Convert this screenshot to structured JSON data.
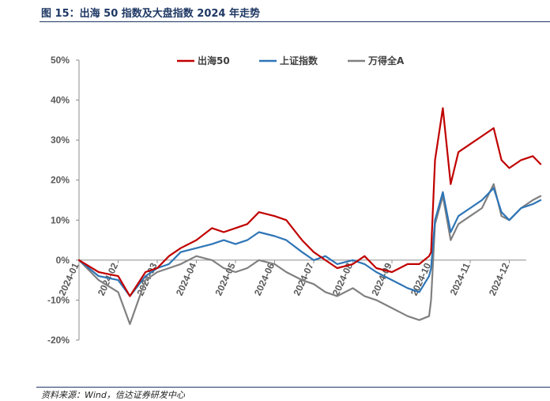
{
  "figure": {
    "title": "图 15：出海 50 指数及大盘指数 2024 年走势",
    "source": "资料来源：Wind，信达证券研发中心"
  },
  "chart_data": {
    "type": "line",
    "title": "图 15：出海 50 指数及大盘指数 2024 年走势",
    "xlabel": "",
    "ylabel": "",
    "ylim": [
      -20,
      50
    ],
    "y_ticks": [
      "50%",
      "40%",
      "30%",
      "20%",
      "10%",
      "0%",
      "-10%",
      "-20%"
    ],
    "x_ticks": [
      "2024-01",
      "2024-02",
      "2024-03",
      "2024-04",
      "2024-05",
      "2024-06",
      "2024-07",
      "2024-08",
      "2024-09",
      "2024-10",
      "2024-11",
      "2024-12"
    ],
    "legend_position": "top",
    "x_month_index": [
      0,
      0.5,
      1,
      1.3,
      1.7,
      2,
      2.3,
      2.6,
      3,
      3.4,
      3.7,
      4,
      4.3,
      4.6,
      5,
      5.3,
      5.7,
      6,
      6.3,
      6.6,
      7,
      7.3,
      7.6,
      8,
      8.4,
      8.7,
      8.95,
      9,
      9.1,
      9.3,
      9.5,
      9.7,
      10,
      10.3,
      10.6,
      10.8,
      11,
      11.3,
      11.6,
      11.8
    ],
    "series": [
      {
        "name": "出海50",
        "color": "#c00000",
        "values": [
          0,
          -3,
          -4,
          -9,
          -3,
          -2,
          1,
          3,
          5,
          8,
          7,
          8,
          9,
          12,
          11,
          10,
          5,
          2,
          0,
          -2,
          -1,
          1,
          -2,
          -3,
          -1,
          -1,
          1,
          2,
          25,
          38,
          19,
          27,
          29,
          31,
          33,
          25,
          23,
          25,
          26,
          24
        ]
      },
      {
        "name": "上证指数",
        "color": "#2e75b6",
        "values": [
          0,
          -4,
          -5,
          -9,
          -4,
          -2,
          -1,
          2,
          3,
          4,
          5,
          4,
          5,
          7,
          6,
          5,
          2,
          0,
          1,
          -1,
          0,
          -1,
          -3,
          -5,
          -7,
          -8,
          -4,
          -2,
          10,
          17,
          7,
          11,
          13,
          15,
          18,
          12,
          10,
          13,
          14,
          15
        ]
      },
      {
        "name": "万得全A",
        "color": "#808080",
        "values": [
          0,
          -5,
          -8,
          -16,
          -5,
          -3,
          -2,
          -1,
          1,
          0,
          -2,
          -3,
          -2,
          0,
          -1,
          -3,
          -5,
          -6,
          -8,
          -9,
          -7,
          -9,
          -10,
          -12,
          -14,
          -15,
          -14,
          -10,
          9,
          16,
          5,
          9,
          11,
          13,
          19,
          11,
          10,
          13,
          15,
          16
        ]
      }
    ]
  }
}
